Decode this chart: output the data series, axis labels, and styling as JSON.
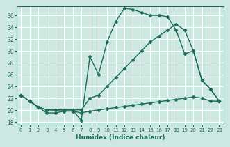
{
  "xlabel": "Humidex (Indice chaleur)",
  "bg_color": "#cce8e0",
  "grid_color": "#ffffff",
  "line_color": "#1a6b5a",
  "xlim": [
    -0.5,
    23.5
  ],
  "ylim": [
    17.5,
    37.5
  ],
  "yticks": [
    18,
    20,
    22,
    24,
    26,
    28,
    30,
    32,
    34,
    36
  ],
  "xticks": [
    0,
    1,
    2,
    3,
    4,
    5,
    6,
    7,
    8,
    9,
    10,
    11,
    12,
    13,
    14,
    15,
    16,
    17,
    18,
    19,
    20,
    21,
    22,
    23
  ],
  "line1_x": [
    0,
    1,
    2,
    3,
    4,
    5,
    6,
    7,
    8,
    9,
    10,
    11,
    12,
    13,
    14,
    15,
    16,
    17,
    18,
    19,
    20,
    21,
    22,
    23
  ],
  "line1_y": [
    22.5,
    21.5,
    20.5,
    19.5,
    19.5,
    19.8,
    19.8,
    19.5,
    19.8,
    20.0,
    20.2,
    20.4,
    20.6,
    20.8,
    21.0,
    21.2,
    21.4,
    21.6,
    21.8,
    22.0,
    22.2,
    22.0,
    21.5,
    21.5
  ],
  "line2_x": [
    0,
    1,
    2,
    3,
    4,
    5,
    6,
    7,
    8,
    9,
    10,
    11,
    12,
    13,
    14,
    15,
    16,
    17,
    18,
    19,
    20,
    21,
    22,
    23
  ],
  "line2_y": [
    22.5,
    21.5,
    20.5,
    20.0,
    20.0,
    20.0,
    20.0,
    20.0,
    22.0,
    22.5,
    24.0,
    25.5,
    27.0,
    28.5,
    30.0,
    31.5,
    32.5,
    33.5,
    34.5,
    33.5,
    30.0,
    25.0,
    23.5,
    21.5
  ],
  "line3_x": [
    0,
    1,
    2,
    3,
    4,
    5,
    6,
    7,
    8,
    9,
    10,
    11,
    12,
    13,
    14,
    15,
    16,
    17,
    18,
    19,
    20,
    21,
    22,
    23
  ],
  "line3_y": [
    22.5,
    21.5,
    20.5,
    20.0,
    20.0,
    20.0,
    20.0,
    18.2,
    29.0,
    26.0,
    31.5,
    35.0,
    37.2,
    37.0,
    36.5,
    36.0,
    36.0,
    35.8,
    33.5,
    29.5,
    30.0,
    25.0,
    23.5,
    21.5
  ],
  "marker": "D",
  "markersize": 2.5,
  "linewidth": 1.0,
  "tick_fontsize": 5.5,
  "xlabel_fontsize": 6.5
}
